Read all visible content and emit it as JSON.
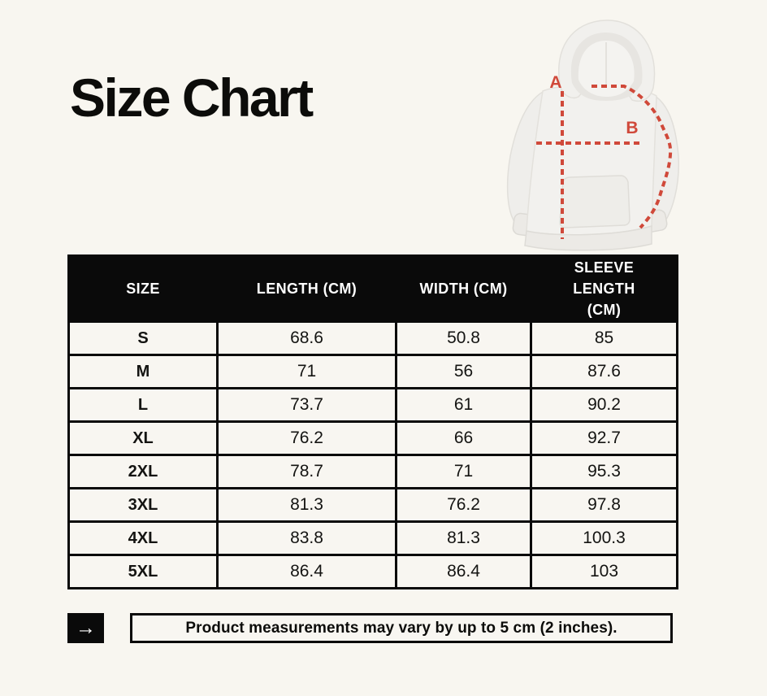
{
  "page": {
    "title": "Size Chart"
  },
  "diagram": {
    "garment": "hoodie",
    "label_a": "A",
    "label_b": "B",
    "line_color": "#d0493a"
  },
  "chart_data": {
    "type": "table",
    "title": "Size Chart",
    "columns": [
      "SIZE",
      "LENGTH (CM)",
      "WIDTH (CM)",
      "SLEEVE LENGTH (CM)"
    ],
    "rows": [
      [
        "S",
        68.6,
        50.8,
        85
      ],
      [
        "M",
        71,
        56,
        87.6
      ],
      [
        "L",
        73.7,
        61,
        90.2
      ],
      [
        "XL",
        76.2,
        66,
        92.7
      ],
      [
        "2XL",
        78.7,
        71,
        95.3
      ],
      [
        "3XL",
        81.3,
        76.2,
        97.8
      ],
      [
        "4XL",
        83.8,
        81.3,
        100.3
      ],
      [
        "5XL",
        86.4,
        86.4,
        103
      ]
    ]
  },
  "table": {
    "headers": [
      "SIZE",
      "LENGTH (CM)",
      "WIDTH (CM)",
      "SLEEVE LENGTH (CM)"
    ],
    "rows": [
      [
        "S",
        "68.6",
        "50.8",
        "85"
      ],
      [
        "M",
        "71",
        "56",
        "87.6"
      ],
      [
        "L",
        "73.7",
        "61",
        "90.2"
      ],
      [
        "XL",
        "76.2",
        "66",
        "92.7"
      ],
      [
        "2XL",
        "78.7",
        "71",
        "95.3"
      ],
      [
        "3XL",
        "81.3",
        "76.2",
        "97.8"
      ],
      [
        "4XL",
        "83.8",
        "81.3",
        "100.3"
      ],
      [
        "5XL",
        "86.4",
        "86.4",
        "103"
      ]
    ]
  },
  "footer": {
    "arrow_icon": "→",
    "note": "Product measurements may vary by up to 5 cm (2 inches)."
  },
  "colors": {
    "background": "#f8f6f0",
    "table_header_bg": "#0a0a0a",
    "table_header_text": "#ffffff",
    "table_border": "#0a0a0a",
    "measure_line": "#d0493a"
  }
}
